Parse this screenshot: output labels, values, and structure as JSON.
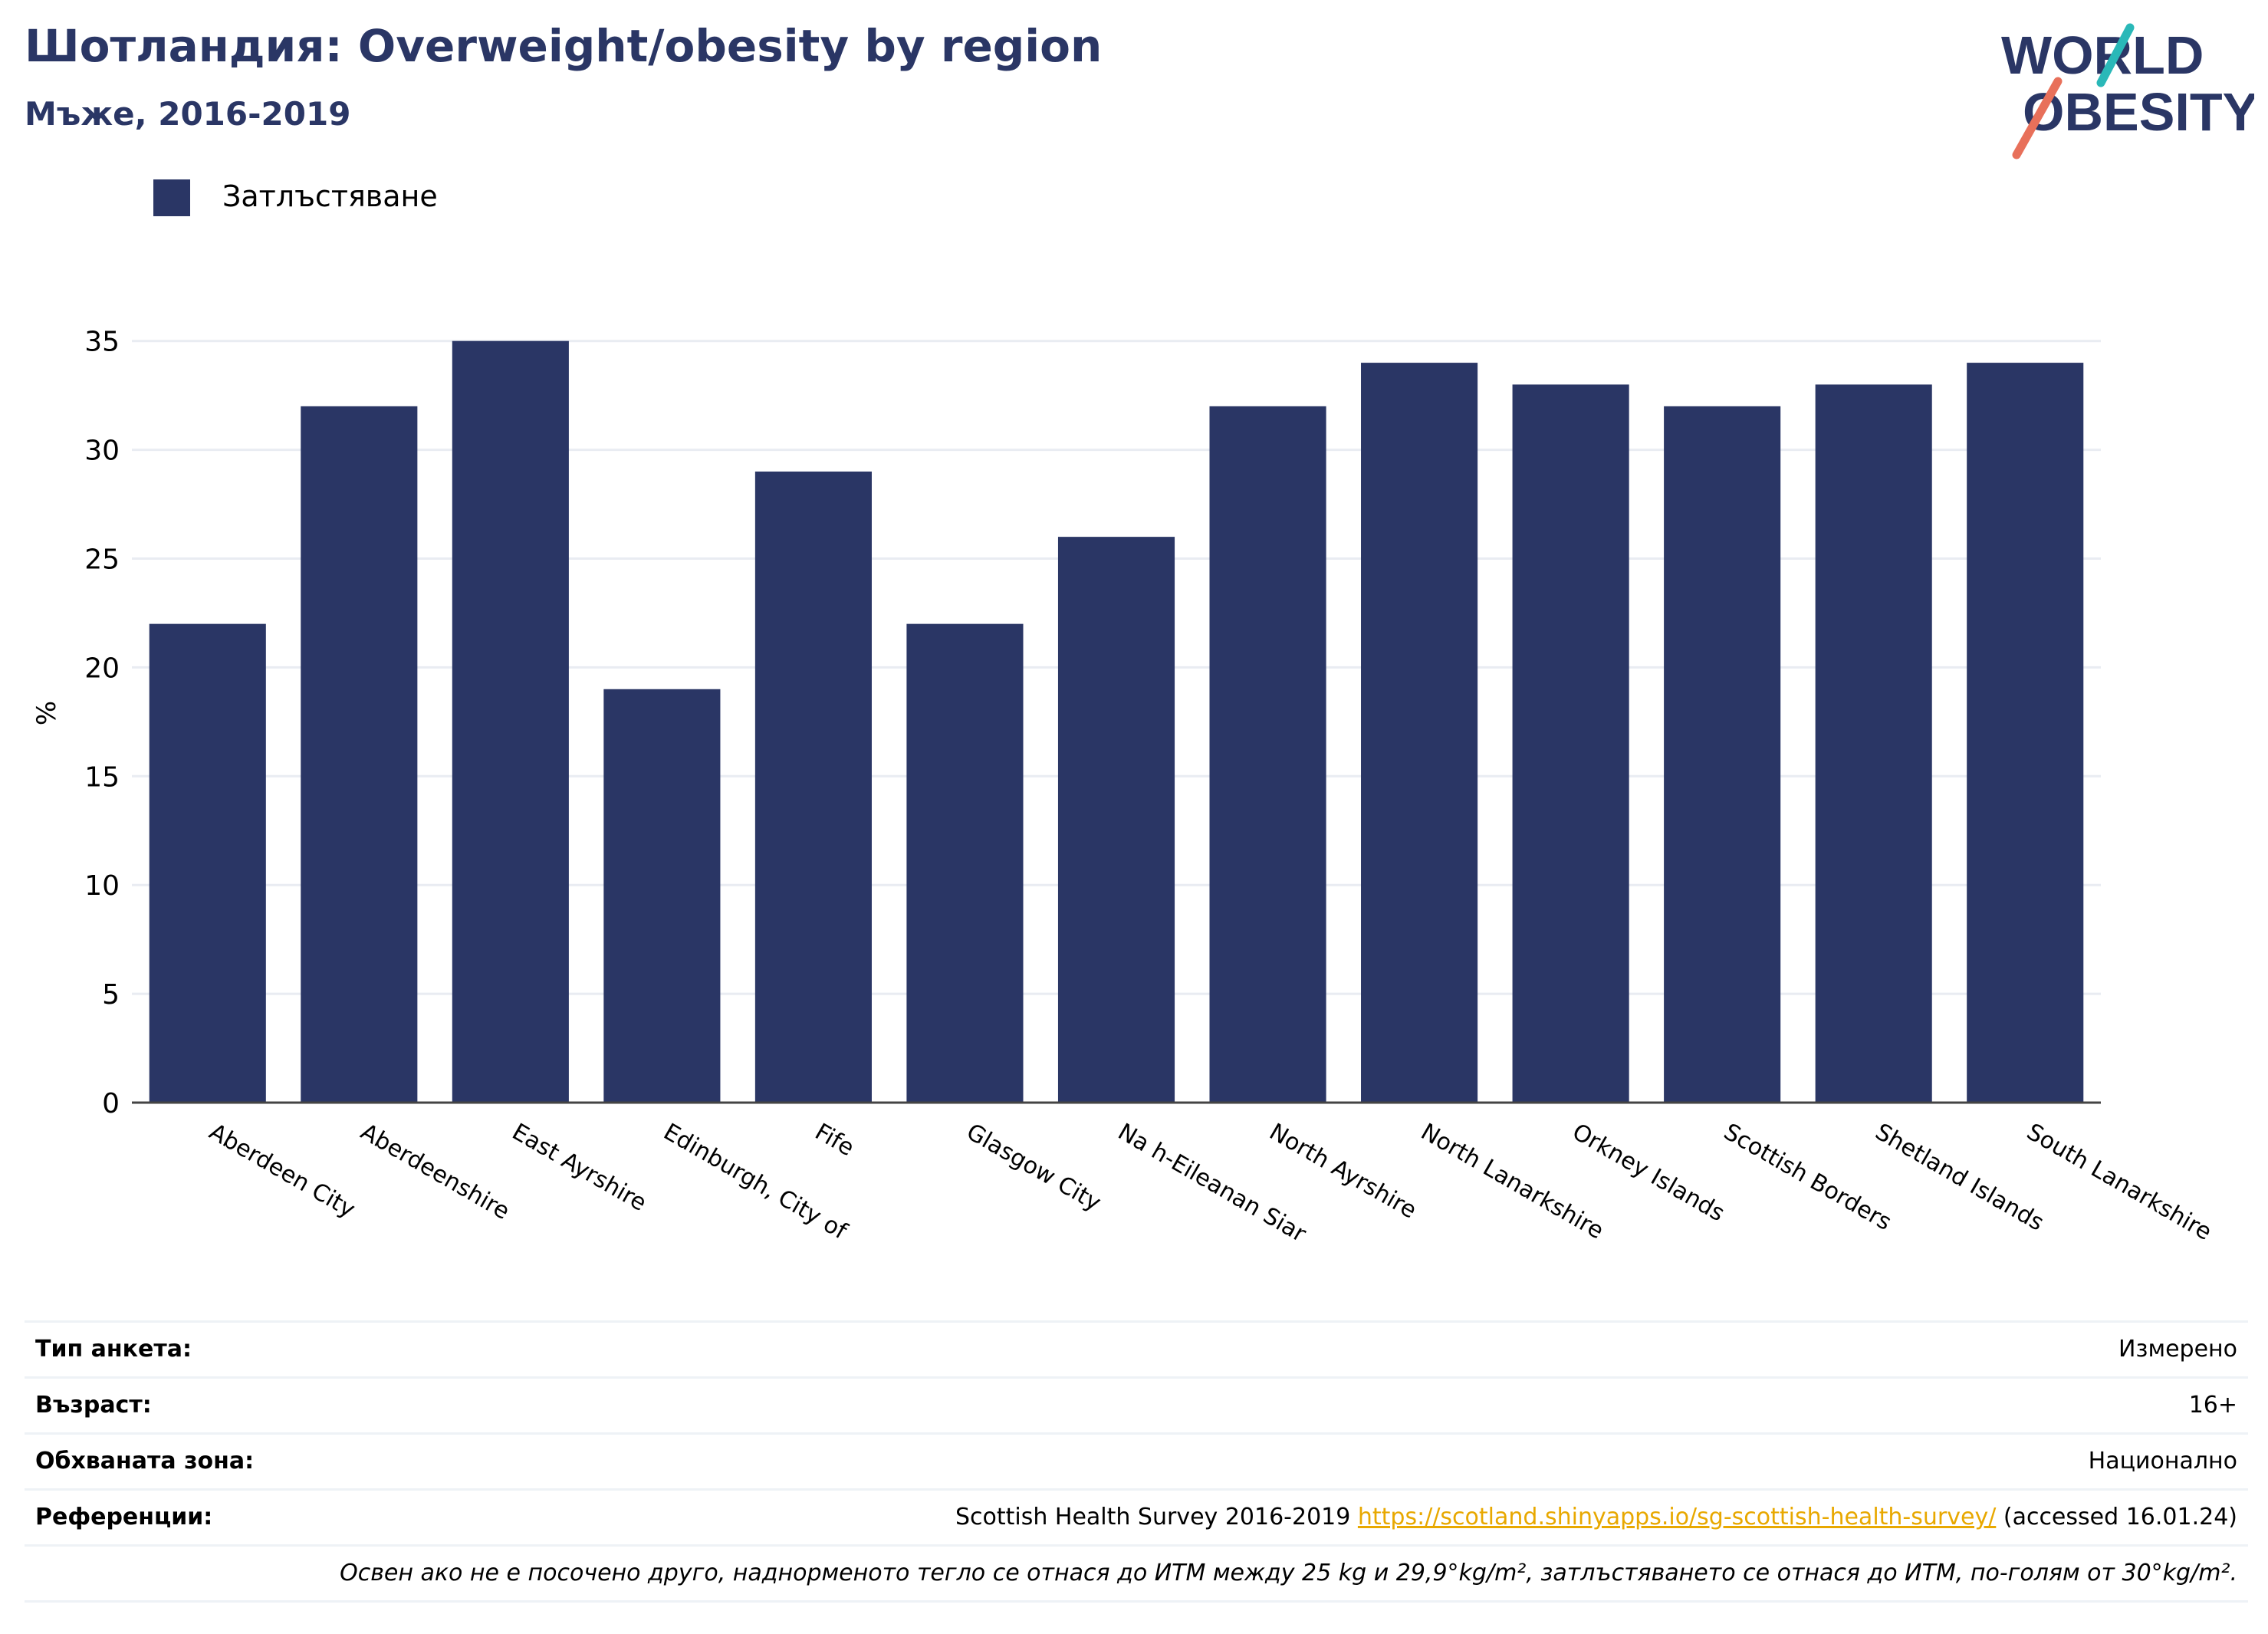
{
  "header": {
    "title": "Шотландия: Overweight/obesity by region",
    "subtitle": "Мъже, 2016-2019",
    "logo_text_line1": "WORLD",
    "logo_text_line2": "OBESITY"
  },
  "chart_data": {
    "type": "bar",
    "categories": [
      "Aberdeen City",
      "Aberdeenshire",
      "East Ayrshire",
      "Edinburgh, City of",
      "Fife",
      "Glasgow City",
      "Na h-Eileanan Siar",
      "North Ayrshire",
      "North Lanarkshire",
      "Orkney Islands",
      "Scottish Borders",
      "Shetland Islands",
      "South Lanarkshire"
    ],
    "series": [
      {
        "name": "Затлъстяване",
        "values": [
          22,
          32,
          35,
          19,
          29,
          22,
          26,
          32,
          34,
          33,
          32,
          33,
          34
        ],
        "color": "#2a3665"
      }
    ],
    "ylabel": "%",
    "ylim": [
      0,
      35
    ],
    "yticks": [
      0,
      5,
      10,
      15,
      20,
      25,
      30,
      35
    ],
    "grid": true,
    "legend_position": "top-left"
  },
  "info": {
    "survey_type_label": "Тип анкета:",
    "survey_type_value": "Измерено",
    "age_label": "Възраст:",
    "age_value": "16+",
    "area_label": "Обхваната зона:",
    "area_value": "Национално",
    "refs_label": "Референции:",
    "refs_text": "Scottish Health Survey 2016-2019",
    "refs_link": "https://scotland.shinyapps.io/sg-scottish-health-survey/",
    "refs_accessed": "(accessed 16.01.24)",
    "note": "Освен ако не е посочено друго, наднорменото тегло се отнася до ИТМ между 25 kg и 29,9°kg/m², затлъстяването се отнася до ИТМ, по-голям от 30°kg/m²."
  },
  "colors": {
    "bar": "#2a3665",
    "title": "#2a3665",
    "link": "#e8a800",
    "logo_teal": "#2ab8b8",
    "logo_coral": "#e8705a"
  }
}
